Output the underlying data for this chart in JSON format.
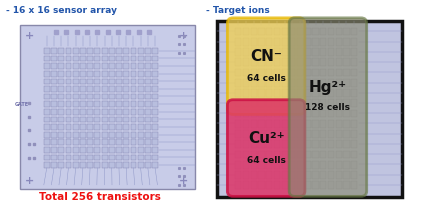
{
  "title_left": "- 16 x 16 sensor array",
  "title_right": "- Target ions",
  "subtitle_left": "Total 256 transistors",
  "subtitle_left_color": "#ee1111",
  "title_color": "#2255aa",
  "bg_color": "#ffffff",
  "cn_label": "CN⁻",
  "cn_cells": "64 cells",
  "cn_box_color": "#e8b800",
  "cn_fill": "#f0d055",
  "cu_label": "Cu²⁺",
  "cu_cells": "64 cells",
  "cu_box_color": "#cc1144",
  "cu_fill": "#dd3366",
  "hg_label": "Hg²⁺",
  "hg_cells": "128 cells",
  "hg_box_color": "#667744",
  "hg_fill": "#8a8a72",
  "gate_label": "GATE",
  "figsize": [
    4.24,
    2.1
  ],
  "dpi": 100
}
